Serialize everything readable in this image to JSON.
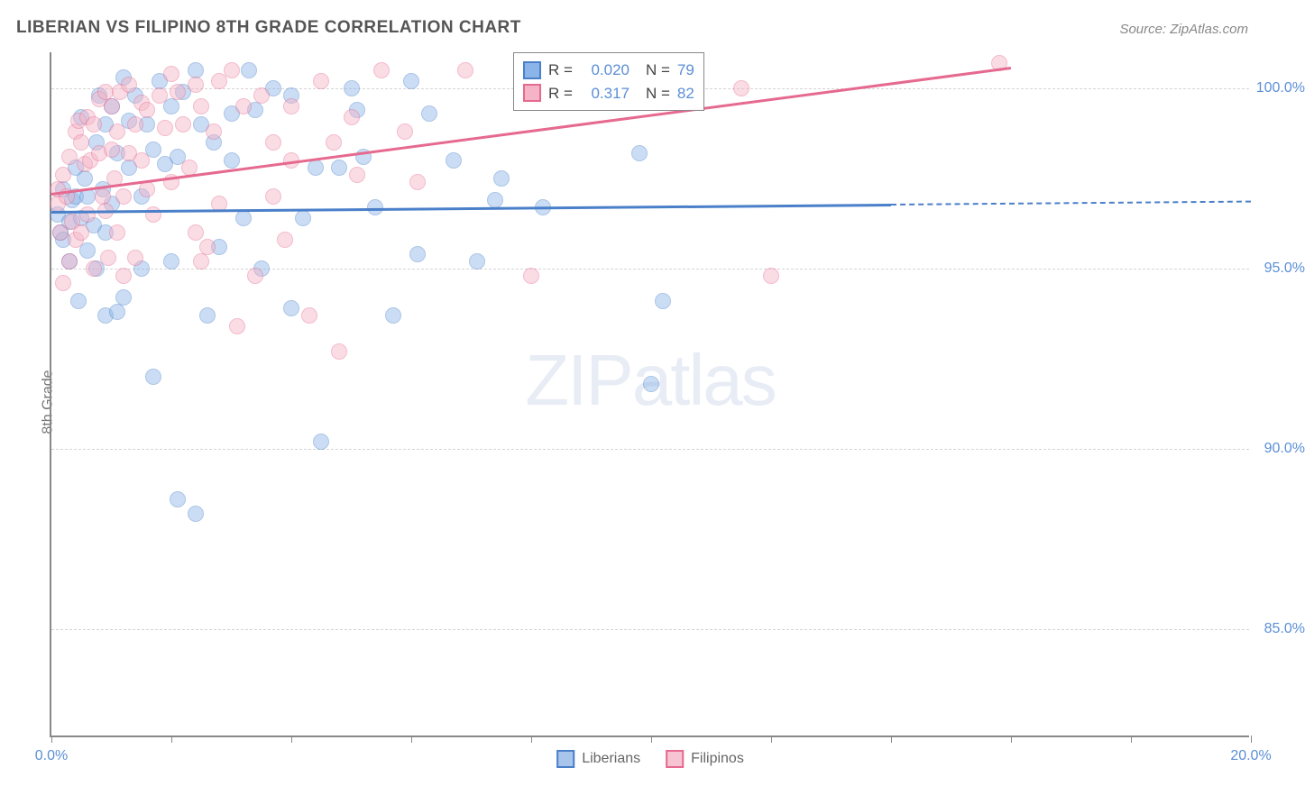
{
  "title": "LIBERIAN VS FILIPINO 8TH GRADE CORRELATION CHART",
  "source": "Source: ZipAtlas.com",
  "ylabel": "8th Grade",
  "watermark_a": "ZIP",
  "watermark_b": "atlas",
  "chart": {
    "type": "scatter",
    "xlim": [
      0,
      20
    ],
    "ylim": [
      82,
      101
    ],
    "x_ticks": [
      0,
      2,
      4,
      6,
      8,
      10,
      12,
      14,
      16,
      18,
      20
    ],
    "x_tick_labels_shown": {
      "0": "0.0%",
      "20": "20.0%"
    },
    "y_ticks": [
      85,
      90,
      95,
      100
    ],
    "y_tick_labels": {
      "85": "85.0%",
      "90": "90.0%",
      "95": "95.0%",
      "100": "100.0%"
    },
    "background_color": "#ffffff",
    "grid_color": "#d5d5d5",
    "axis_color": "#888888",
    "tick_label_color": "#5b8fd6",
    "point_radius": 9,
    "point_opacity": 0.45,
    "series": [
      {
        "name": "Liberians",
        "color_fill": "#8bb4e8",
        "color_stroke": "#4a7fc9",
        "R": "0.020",
        "N": "79",
        "trend": {
          "x1": 0,
          "y1": 96.6,
          "x2": 14,
          "y2": 96.8,
          "dash_to_x": 20
        },
        "points": [
          [
            0.1,
            96.5
          ],
          [
            0.15,
            96.0
          ],
          [
            0.2,
            97.2
          ],
          [
            0.2,
            95.8
          ],
          [
            0.3,
            96.3
          ],
          [
            0.3,
            95.2
          ],
          [
            0.35,
            96.9
          ],
          [
            0.4,
            97.0
          ],
          [
            0.4,
            97.8
          ],
          [
            0.45,
            94.1
          ],
          [
            0.5,
            96.4
          ],
          [
            0.5,
            99.2
          ],
          [
            0.55,
            97.5
          ],
          [
            0.6,
            97.0
          ],
          [
            0.6,
            95.5
          ],
          [
            0.7,
            96.2
          ],
          [
            0.75,
            98.5
          ],
          [
            0.75,
            95.0
          ],
          [
            0.8,
            99.8
          ],
          [
            0.85,
            97.2
          ],
          [
            0.9,
            96.0
          ],
          [
            0.9,
            99.0
          ],
          [
            0.9,
            93.7
          ],
          [
            1.0,
            96.8
          ],
          [
            1.0,
            99.5
          ],
          [
            1.1,
            93.8
          ],
          [
            1.1,
            98.2
          ],
          [
            1.2,
            94.2
          ],
          [
            1.2,
            100.3
          ],
          [
            1.3,
            99.1
          ],
          [
            1.3,
            97.8
          ],
          [
            1.4,
            99.8
          ],
          [
            1.5,
            97.0
          ],
          [
            1.5,
            95.0
          ],
          [
            1.6,
            99.0
          ],
          [
            1.7,
            98.3
          ],
          [
            1.7,
            92.0
          ],
          [
            1.8,
            100.2
          ],
          [
            1.9,
            97.9
          ],
          [
            2.0,
            99.5
          ],
          [
            2.0,
            95.2
          ],
          [
            2.1,
            98.1
          ],
          [
            2.1,
            88.6
          ],
          [
            2.2,
            99.9
          ],
          [
            2.4,
            100.5
          ],
          [
            2.4,
            88.2
          ],
          [
            2.5,
            99.0
          ],
          [
            2.6,
            93.7
          ],
          [
            2.7,
            98.5
          ],
          [
            2.8,
            95.6
          ],
          [
            3.0,
            99.3
          ],
          [
            3.0,
            98.0
          ],
          [
            3.2,
            96.4
          ],
          [
            3.3,
            100.5
          ],
          [
            3.4,
            99.4
          ],
          [
            3.5,
            95.0
          ],
          [
            3.7,
            100.0
          ],
          [
            4.0,
            93.9
          ],
          [
            4.0,
            99.8
          ],
          [
            4.2,
            96.4
          ],
          [
            4.4,
            97.8
          ],
          [
            4.5,
            90.2
          ],
          [
            4.8,
            97.8
          ],
          [
            5.0,
            100.0
          ],
          [
            5.1,
            99.4
          ],
          [
            5.2,
            98.1
          ],
          [
            5.4,
            96.7
          ],
          [
            5.7,
            93.7
          ],
          [
            6.0,
            100.2
          ],
          [
            6.1,
            95.4
          ],
          [
            6.3,
            99.3
          ],
          [
            6.7,
            98.0
          ],
          [
            7.1,
            95.2
          ],
          [
            7.4,
            96.9
          ],
          [
            7.5,
            97.5
          ],
          [
            8.2,
            96.7
          ],
          [
            9.8,
            98.2
          ],
          [
            10.0,
            91.8
          ],
          [
            10.2,
            94.1
          ]
        ]
      },
      {
        "name": "Filipinos",
        "color_fill": "#f4b3c6",
        "color_stroke": "#e6698f",
        "R": "0.317",
        "N": "82",
        "trend": {
          "x1": 0,
          "y1": 97.1,
          "x2": 16,
          "y2": 100.6,
          "dash_to_x": null
        },
        "points": [
          [
            0.1,
            96.8
          ],
          [
            0.1,
            97.2
          ],
          [
            0.15,
            96.0
          ],
          [
            0.2,
            97.6
          ],
          [
            0.2,
            94.6
          ],
          [
            0.25,
            97.0
          ],
          [
            0.3,
            95.2
          ],
          [
            0.3,
            98.1
          ],
          [
            0.35,
            96.3
          ],
          [
            0.4,
            98.8
          ],
          [
            0.4,
            95.8
          ],
          [
            0.45,
            99.1
          ],
          [
            0.5,
            98.5
          ],
          [
            0.5,
            96.0
          ],
          [
            0.55,
            97.9
          ],
          [
            0.6,
            99.2
          ],
          [
            0.6,
            96.5
          ],
          [
            0.65,
            98.0
          ],
          [
            0.7,
            95.0
          ],
          [
            0.7,
            99.0
          ],
          [
            0.8,
            99.7
          ],
          [
            0.8,
            98.2
          ],
          [
            0.85,
            97.0
          ],
          [
            0.9,
            99.9
          ],
          [
            0.9,
            96.6
          ],
          [
            0.95,
            95.3
          ],
          [
            1.0,
            99.5
          ],
          [
            1.0,
            98.3
          ],
          [
            1.05,
            97.5
          ],
          [
            1.1,
            96.0
          ],
          [
            1.1,
            98.8
          ],
          [
            1.15,
            99.9
          ],
          [
            1.2,
            97.0
          ],
          [
            1.2,
            94.8
          ],
          [
            1.3,
            98.2
          ],
          [
            1.3,
            100.1
          ],
          [
            1.4,
            99.0
          ],
          [
            1.4,
            95.3
          ],
          [
            1.5,
            99.6
          ],
          [
            1.5,
            98.0
          ],
          [
            1.6,
            97.2
          ],
          [
            1.6,
            99.4
          ],
          [
            1.7,
            96.5
          ],
          [
            1.8,
            99.8
          ],
          [
            1.9,
            98.9
          ],
          [
            2.0,
            100.4
          ],
          [
            2.0,
            97.4
          ],
          [
            2.1,
            99.9
          ],
          [
            2.2,
            99.0
          ],
          [
            2.3,
            97.8
          ],
          [
            2.4,
            100.1
          ],
          [
            2.4,
            96.0
          ],
          [
            2.5,
            99.5
          ],
          [
            2.5,
            95.2
          ],
          [
            2.6,
            95.6
          ],
          [
            2.7,
            98.8
          ],
          [
            2.8,
            100.2
          ],
          [
            2.8,
            96.8
          ],
          [
            3.0,
            100.5
          ],
          [
            3.1,
            93.4
          ],
          [
            3.2,
            99.5
          ],
          [
            3.4,
            94.8
          ],
          [
            3.5,
            99.8
          ],
          [
            3.7,
            97.0
          ],
          [
            3.7,
            98.5
          ],
          [
            3.9,
            95.8
          ],
          [
            4.0,
            98.0
          ],
          [
            4.0,
            99.5
          ],
          [
            4.3,
            93.7
          ],
          [
            4.5,
            100.2
          ],
          [
            4.7,
            98.5
          ],
          [
            4.8,
            92.7
          ],
          [
            5.0,
            99.2
          ],
          [
            5.1,
            97.6
          ],
          [
            5.5,
            100.5
          ],
          [
            5.9,
            98.8
          ],
          [
            6.1,
            97.4
          ],
          [
            6.9,
            100.5
          ],
          [
            8.0,
            94.8
          ],
          [
            11.5,
            100.0
          ],
          [
            12.0,
            94.8
          ],
          [
            15.8,
            100.7
          ]
        ]
      }
    ],
    "legend_top": {
      "R_label": "R =",
      "N_label": "N ="
    },
    "legend_bottom": [
      {
        "label": "Liberians",
        "fill": "#a8c5ec",
        "stroke": "#4a7fc9"
      },
      {
        "label": "Filipinos",
        "fill": "#f6c4d3",
        "stroke": "#e6698f"
      }
    ]
  }
}
